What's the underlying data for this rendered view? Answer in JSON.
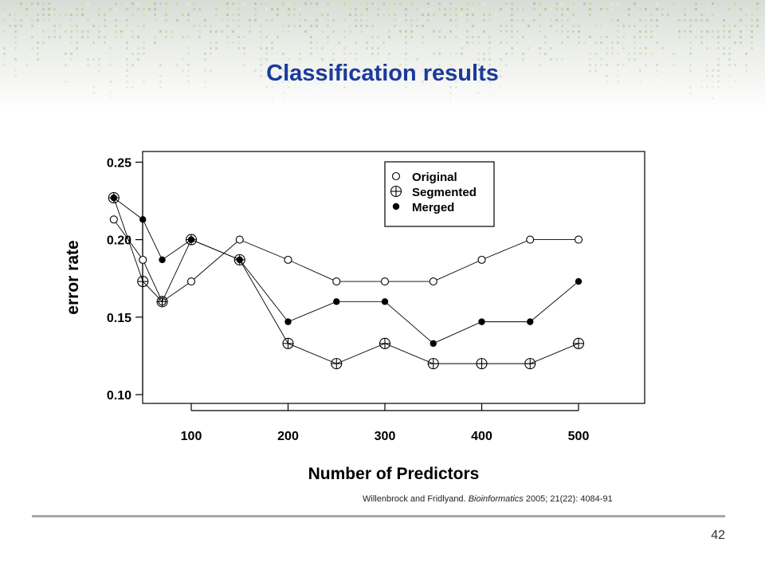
{
  "slide": {
    "title": "Classification results",
    "citation": {
      "authors": "Willenbrock and Fridlyand.",
      "journal": "Bioinformatics",
      "details": "2005; 21(22): 4084-91"
    },
    "page_number": "42"
  },
  "chart_data": {
    "type": "line",
    "xlabel": "Number of Predictors",
    "ylabel": "error rate",
    "xlim": [
      0,
      520
    ],
    "ylim": [
      0.095,
      0.255
    ],
    "xticks": [
      "100",
      "200",
      "300",
      "400",
      "500"
    ],
    "yticks": [
      "0.10",
      "0.15",
      "0.20",
      "0.25"
    ],
    "grid": false,
    "legend_position": "top-center",
    "x": [
      20,
      50,
      70,
      100,
      150,
      200,
      250,
      300,
      350,
      400,
      450,
      500
    ],
    "series": [
      {
        "name": "Original",
        "marker": "open-circle",
        "values": [
          0.213,
          0.187,
          0.16,
          0.173,
          0.2,
          0.187,
          0.173,
          0.173,
          0.173,
          0.187,
          0.2,
          0.2
        ]
      },
      {
        "name": "Segmented",
        "marker": "circle-plus",
        "values": [
          0.227,
          0.173,
          0.16,
          0.2,
          0.187,
          0.133,
          0.12,
          0.133,
          0.12,
          0.12,
          0.12,
          0.133
        ]
      },
      {
        "name": "Merged",
        "marker": "filled-dot",
        "values": [
          0.227,
          0.213,
          0.187,
          0.2,
          0.187,
          0.147,
          0.16,
          0.16,
          0.133,
          0.147,
          0.147,
          0.173
        ]
      }
    ]
  }
}
